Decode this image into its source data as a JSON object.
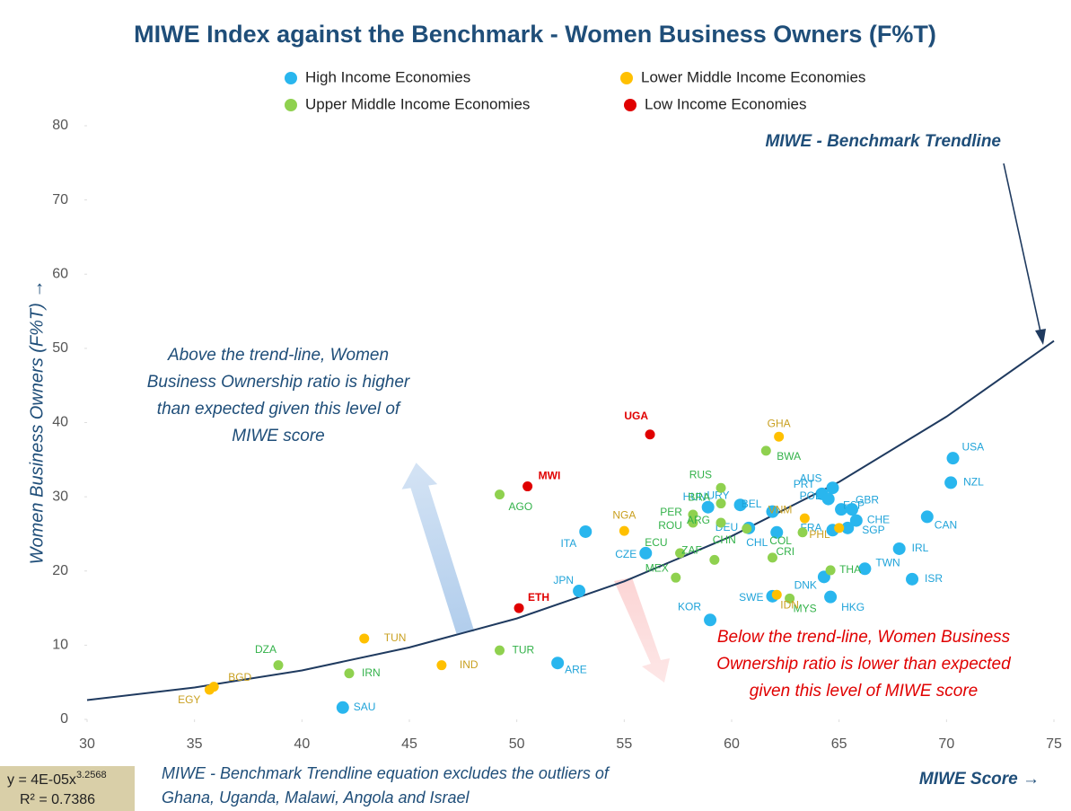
{
  "chart_data": {
    "type": "scatter",
    "title": "MIWE Index against the Benchmark - Women Business Owners (F%T)",
    "x_label": "MIWE Score →",
    "y_label": "Women Business Owners (F%T) →",
    "xlim": [
      30,
      75
    ],
    "ylim": [
      0,
      80
    ],
    "xticks": [
      30,
      35,
      40,
      45,
      50,
      55,
      60,
      65,
      70,
      75
    ],
    "yticks": [
      0,
      10,
      20,
      30,
      40,
      50,
      60,
      70,
      80
    ],
    "grid": false,
    "legend": "top",
    "series": [
      {
        "name": "High Income Economies",
        "color": "#29b6ee",
        "label_color": "#1fa3d9",
        "labels": [
          "USA",
          "NZL",
          "CAN",
          "IRL",
          "ISR",
          "TWN",
          "HKG",
          "DNK",
          "SWE",
          "KOR",
          "JPN",
          "ARE",
          "SAU",
          "CZE",
          "ITA",
          "HUN",
          "URY",
          "BEL",
          "DEU",
          "CHL",
          "PRT",
          "AUS",
          "POL",
          "ESP",
          "GBR",
          "FRA",
          "CHE",
          "SGP"
        ],
        "x": [
          70.3,
          70.2,
          69.1,
          67.8,
          68.4,
          66.2,
          64.6,
          64.3,
          61.9,
          59.0,
          52.9,
          51.9,
          41.9,
          56.0,
          53.2,
          58.9,
          60.4,
          61.9,
          60.8,
          62.1,
          64.2,
          64.7,
          64.5,
          65.1,
          65.6,
          64.7,
          65.8,
          65.4
        ],
        "values": [
          35.2,
          31.9,
          27.3,
          23.0,
          18.9,
          20.3,
          16.5,
          19.2,
          16.6,
          13.4,
          17.3,
          7.6,
          1.6,
          22.4,
          25.3,
          28.6,
          28.9,
          28.0,
          25.8,
          25.2,
          30.4,
          31.2,
          29.7,
          28.3,
          28.3,
          25.5,
          26.8,
          25.8
        ]
      },
      {
        "name": "Upper Middle Income Economies",
        "color": "#8fd14f",
        "label_color": "#33b24a",
        "labels": [
          "DZA",
          "IRN",
          "TUR",
          "AGO",
          "RUS",
          "BRA",
          "PER",
          "ROU",
          "ARG",
          "CHN",
          "ECU",
          "ZAF",
          "MEX",
          "CRI",
          "COL",
          "THA",
          "MYS",
          "BWA"
        ],
        "x": [
          38.9,
          42.2,
          49.2,
          49.2,
          59.5,
          59.5,
          58.2,
          58.2,
          59.5,
          60.7,
          57.6,
          59.2,
          57.4,
          61.9,
          63.3,
          64.6,
          62.7,
          61.6
        ],
        "values": [
          7.3,
          6.2,
          9.3,
          30.3,
          31.2,
          29.1,
          27.6,
          26.5,
          26.5,
          25.7,
          22.4,
          21.5,
          19.1,
          21.8,
          25.2,
          20.1,
          16.3,
          36.2
        ]
      },
      {
        "name": "Lower Middle Income Economies",
        "color": "#ffc000",
        "label_color": "#c9a020",
        "labels": [
          "EGY",
          "BGD",
          "TUN",
          "IND",
          "NGA",
          "GHA",
          "VNM",
          "PHL",
          "IDN"
        ],
        "x": [
          35.7,
          35.9,
          42.9,
          46.5,
          55.0,
          62.2,
          63.4,
          65.0,
          62.1
        ],
        "values": [
          4.0,
          4.4,
          10.9,
          7.3,
          25.4,
          38.1,
          27.1,
          25.8,
          16.8
        ]
      },
      {
        "name": "Low Income Economies",
        "color": "#e00000",
        "label_color": "#e00000",
        "labels": [
          "UGA",
          "MWI",
          "ETH"
        ],
        "x": [
          56.2,
          50.5,
          50.1
        ],
        "values": [
          38.4,
          31.4,
          15.0
        ]
      }
    ],
    "trendline": {
      "name": "MIWE - Benchmark Trendline",
      "x": [
        30,
        35,
        40,
        45,
        50,
        55,
        60,
        65,
        70,
        75
      ],
      "values": [
        2.6,
        4.3,
        6.6,
        9.7,
        13.6,
        18.6,
        24.7,
        32.0,
        40.8,
        51.0
      ]
    },
    "equation": "y = 4E-05x",
    "equation_exponent": "3.2568",
    "r_squared": "R² = 0.7386",
    "annotation_above": [
      "Above the trend-line, Women",
      "Business Ownership ratio is higher",
      "than expected given this level of",
      "MIWE score"
    ],
    "annotation_below": [
      "Below the trend-line, Women Business",
      "Ownership ratio is lower than expected",
      "given this level of MIWE score"
    ],
    "footnote": [
      "MIWE - Benchmark Trendline equation excludes the outliers of",
      "Ghana, Uganda, Malawi, Angola and Israel"
    ]
  }
}
